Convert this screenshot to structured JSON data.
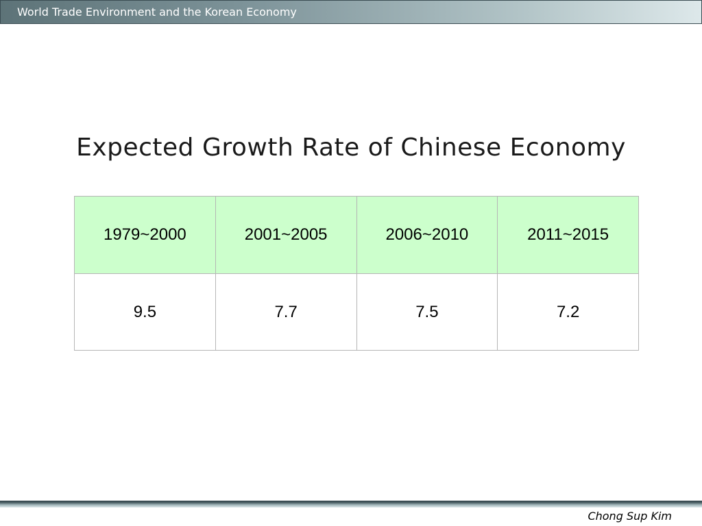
{
  "header": {
    "title": "World Trade Environment and the Korean Economy"
  },
  "slide": {
    "title": "Expected Growth Rate of Chinese Economy"
  },
  "table": {
    "headers": [
      "1979~2000",
      "2001~2005",
      "2006~2010",
      "2011~2015"
    ],
    "values": [
      "9.5",
      "7.7",
      "7.5",
      "7.2"
    ]
  },
  "footer": {
    "author": "Chong Sup Kim"
  },
  "colors": {
    "header_bar": "#5d7378",
    "table_header_bg": "#ccffcc",
    "table_border": "#b5b5b5"
  }
}
